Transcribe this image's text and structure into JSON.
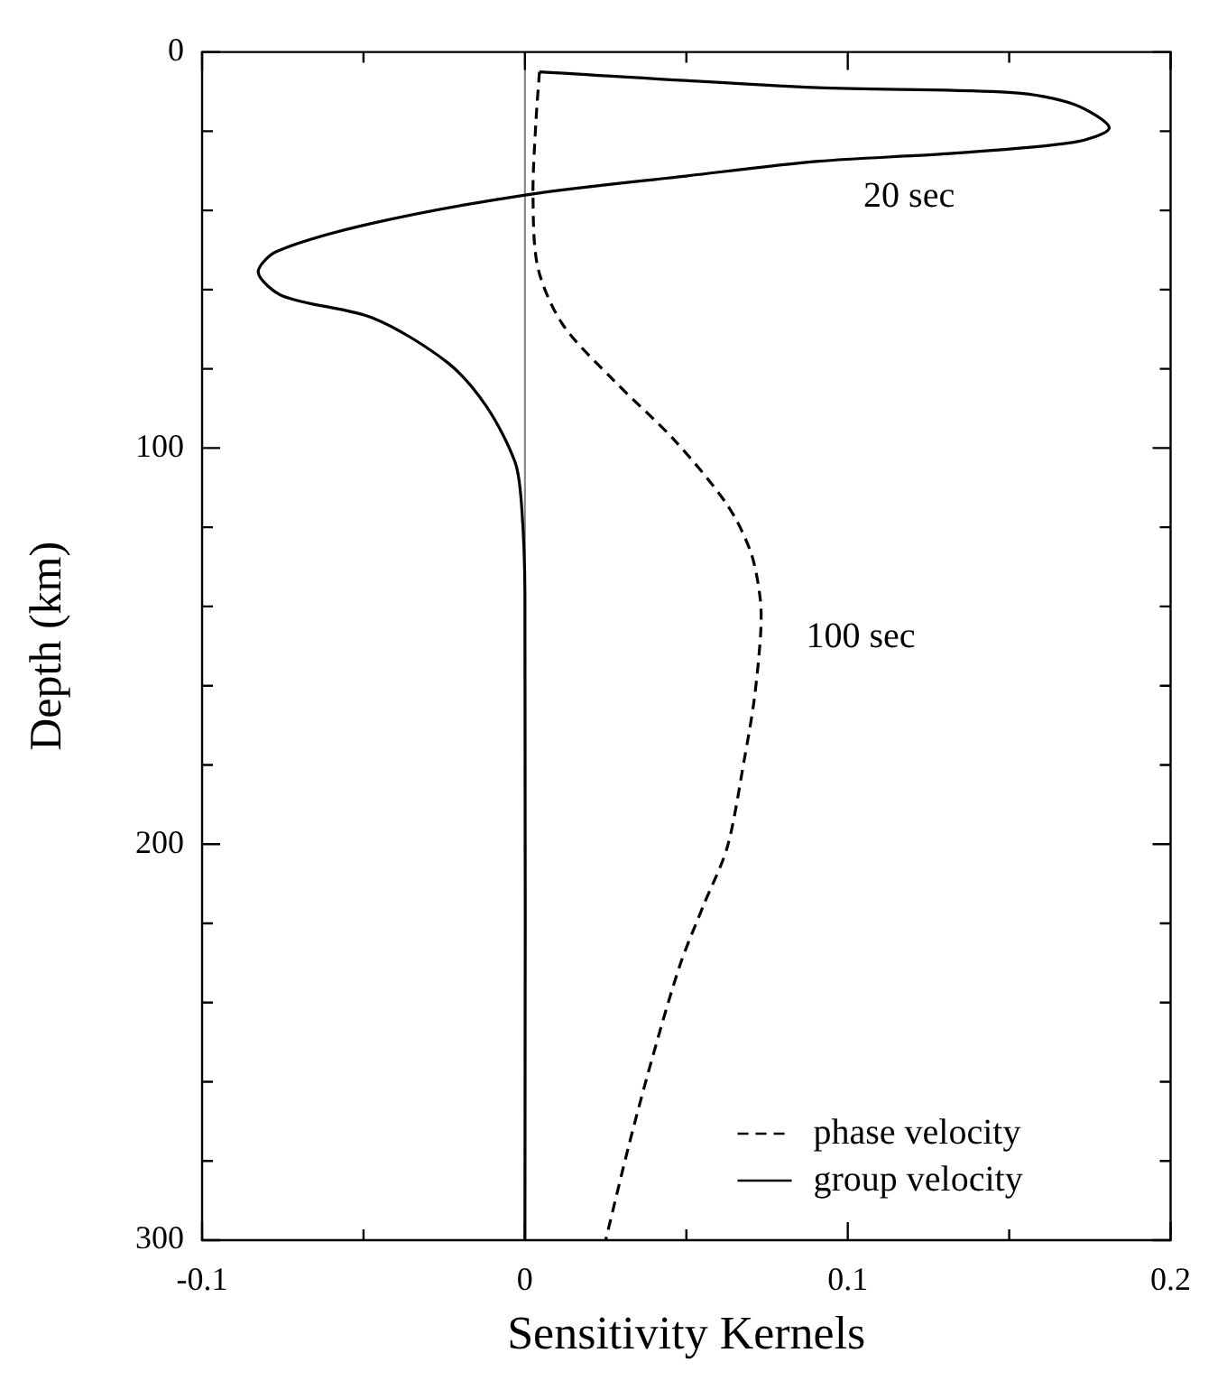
{
  "chart_data": {
    "type": "line",
    "xlabel": "Sensitivity Kernels",
    "ylabel": "Depth (km)",
    "xlim": [
      -0.1,
      0.2
    ],
    "xticks": [
      -0.1,
      {
        "value": -0.05,
        "label": null
      },
      0,
      {
        "value": 0.05,
        "label": null
      },
      0.1,
      {
        "value": 0.15,
        "label": null
      },
      0.2
    ],
    "ylim": [
      300,
      0
    ],
    "yticks": [
      0,
      {
        "value": 20,
        "label": null
      },
      {
        "value": 40,
        "label": null
      },
      {
        "value": 60,
        "label": null
      },
      {
        "value": 80,
        "label": null
      },
      100,
      {
        "value": 120,
        "label": null
      },
      {
        "value": 140,
        "label": null
      },
      {
        "value": 160,
        "label": null
      },
      {
        "value": 180,
        "label": null
      },
      200,
      {
        "value": 220,
        "label": null
      },
      {
        "value": 240,
        "label": null
      },
      {
        "value": 260,
        "label": null
      },
      {
        "value": 280,
        "label": null
      },
      300
    ],
    "grid": false,
    "legend": "bottom right",
    "marker": "none",
    "series": [
      {
        "name": "phase velocity",
        "color": "#000000",
        "line_style": "dashed",
        "x": [
          0.0045,
          0.0034,
          0.0025,
          0.004,
          0.0117,
          0.0276,
          0.0463,
          0.0627,
          0.07,
          0.0729,
          0.073,
          0.071,
          0.068,
          0.0627,
          0.0552,
          0.048,
          0.0398,
          0.0324,
          0.025
        ],
        "values": [
          5,
          17.7,
          36,
          54.4,
          68.8,
          83,
          98,
          114.4,
          126.4,
          138.2,
          147,
          163.6,
          178.4,
          200.7,
          215.7,
          230.6,
          253,
          275.4,
          300
        ]
      },
      {
        "name": "group velocity",
        "color": "#000000",
        "line_style": "solid",
        "x": [
          0.0045,
          0.0906,
          0.15,
          0.17,
          0.181,
          0.17,
          0.13,
          0.091,
          0.051,
          0.001,
          -0.047,
          -0.077,
          -0.0826,
          -0.075,
          -0.047,
          -0.024,
          -0.012,
          -0.003,
          -0.001,
          0,
          0
        ],
        "values": [
          5,
          9,
          10.2,
          13.2,
          19.2,
          22.8,
          25.7,
          27.6,
          31.2,
          36,
          43.2,
          50.4,
          55.7,
          61.6,
          67.2,
          78.4,
          89.4,
          103.7,
          115,
          137,
          300
        ]
      }
    ],
    "ref_lines": [
      {
        "axis": "x",
        "value": 0,
        "color": "#808080"
      }
    ],
    "annotations": [
      "20 sec",
      "100 sec"
    ]
  }
}
